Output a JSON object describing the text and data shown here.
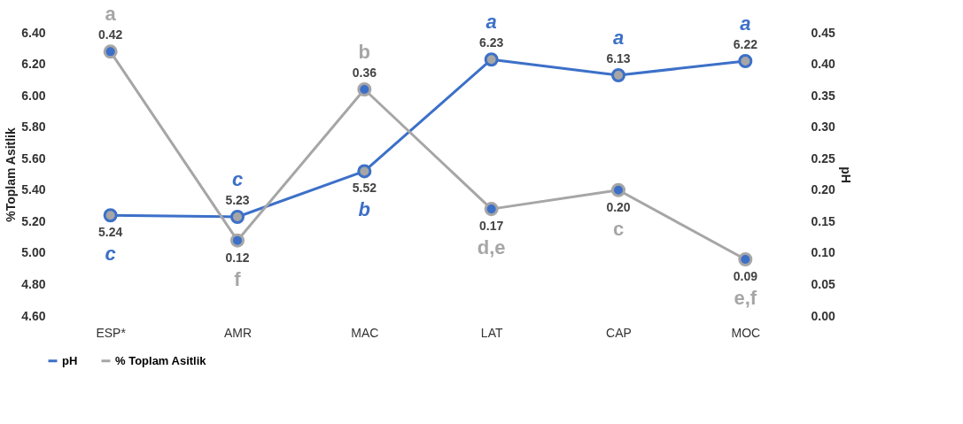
{
  "chart_data": {
    "type": "line",
    "categories": [
      "ESP*",
      "AMR",
      "MAC",
      "LAT",
      "CAP",
      "MOC"
    ],
    "ylabel": "%Toplam Asitlik",
    "y2label": "pH",
    "ylim": [
      4.6,
      6.4
    ],
    "yticks": [
      {
        "value": 4.6,
        "label": "4.60"
      },
      {
        "value": 4.8,
        "label": "4.80"
      },
      {
        "value": 5.0,
        "label": "5.00"
      },
      {
        "value": 5.2,
        "label": "5.20"
      },
      {
        "value": 5.4,
        "label": "5.40"
      },
      {
        "value": 5.6,
        "label": "5.60"
      },
      {
        "value": 5.8,
        "label": "5.80"
      },
      {
        "value": 6.0,
        "label": "6.00"
      },
      {
        "value": 6.2,
        "label": "6.20"
      },
      {
        "value": 6.4,
        "label": "6.40"
      }
    ],
    "y2lim": [
      0,
      0.45
    ],
    "y2ticks": [
      {
        "value": 0,
        "label": "0.00"
      },
      {
        "value": 0.05,
        "label": "0.05"
      },
      {
        "value": 0.1,
        "label": "0.10"
      },
      {
        "value": 0.15,
        "label": "0.15"
      },
      {
        "value": 0.2,
        "label": "0.20"
      },
      {
        "value": 0.25,
        "label": "0.25"
      },
      {
        "value": 0.3,
        "label": "0.30"
      },
      {
        "value": 0.35,
        "label": "0.35"
      },
      {
        "value": 0.4,
        "label": "0.40"
      },
      {
        "value": 0.45,
        "label": "0.45"
      }
    ],
    "series": [
      {
        "name": "pH",
        "color": "#3c70c8",
        "values": [
          5.24,
          5.23,
          5.52,
          6.23,
          6.13,
          6.22
        ]
      },
      {
        "name": "% Toplam Asitlik",
        "color": "#a6a6a6",
        "axis": "y2",
        "values": [
          0.42,
          0.12,
          0.36,
          0.17,
          0.2,
          0.09
        ],
        "value_labels": [
          "0.42",
          "0.12",
          "0.36",
          "0.17",
          "0.20",
          "0.09"
        ]
      }
    ],
    "data_labels": true,
    "marker": "circle",
    "legend": "bottom",
    "grid": false,
    "annotations": [
      "c",
      "c",
      "b",
      "a",
      "a",
      "a",
      "a",
      "f",
      "b",
      "d,e",
      "c",
      "e,f"
    ]
  }
}
